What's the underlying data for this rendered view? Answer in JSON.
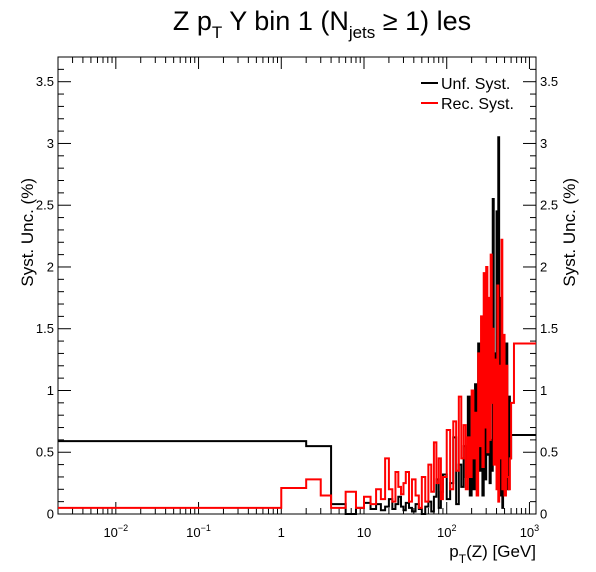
{
  "chart_data": {
    "type": "line",
    "title": {
      "main": "Z p",
      "sub1": "T",
      "mid": " Y bin 1 (N",
      "sub2": "jets",
      "end": " ≥ 1) les"
    },
    "xlabel": {
      "main": "p",
      "sub": "T",
      "end": "(Z) [GeV]"
    },
    "ylabel": "Syst. Unc. (%)",
    "x_scale": "log",
    "xlim": [
      0.002,
      1200
    ],
    "ylim": [
      0,
      3.7
    ],
    "x_ticks": [
      {
        "base": "10",
        "exp": "−2",
        "value": 0.01
      },
      {
        "base": "10",
        "exp": "−1",
        "value": 0.1
      },
      {
        "base": "1",
        "exp": "",
        "value": 1
      },
      {
        "base": "10",
        "exp": "",
        "value": 10
      },
      {
        "base": "10",
        "exp": "2",
        "value": 100
      },
      {
        "base": "10",
        "exp": "3",
        "value": 1000
      }
    ],
    "y_ticks": [
      {
        "label": "0",
        "value": 0
      },
      {
        "label": "0.5",
        "value": 0.5
      },
      {
        "label": "1",
        "value": 1
      },
      {
        "label": "1.5",
        "value": 1.5
      },
      {
        "label": "2",
        "value": 2
      },
      {
        "label": "2.5",
        "value": 2.5
      },
      {
        "label": "3",
        "value": 3
      },
      {
        "label": "3.5",
        "value": 3.5
      }
    ],
    "legend_position": "top-right",
    "series": [
      {
        "name": "Unf. Syst.",
        "color": "#000000",
        "edges": [
          0.002,
          2,
          4,
          6,
          8,
          10,
          12,
          14,
          16,
          18,
          20,
          22,
          24,
          26,
          28,
          30,
          32,
          35,
          38,
          42,
          46,
          50,
          55,
          60,
          65,
          70,
          75,
          80,
          85,
          90,
          100,
          110,
          120,
          130,
          140,
          150,
          160,
          170,
          180,
          190,
          200,
          210,
          220,
          230,
          240,
          250,
          260,
          270,
          280,
          290,
          300,
          310,
          320,
          330,
          340,
          350,
          360,
          370,
          380,
          390,
          400,
          410,
          420,
          430,
          440,
          450,
          460,
          470,
          480,
          500,
          520,
          540,
          560,
          580,
          600,
          650,
          1200
        ],
        "values": [
          0.59,
          0.55,
          0.08,
          0.0,
          0.05,
          0.09,
          0.04,
          0.08,
          0.03,
          0.06,
          0.12,
          0.04,
          0.08,
          0.14,
          0.06,
          0.03,
          0.09,
          0.05,
          0.02,
          0.08,
          0.04,
          0.0,
          0.06,
          0.1,
          0.02,
          0.14,
          0.28,
          0.05,
          0.18,
          0.32,
          0.12,
          0.25,
          0.62,
          0.08,
          0.4,
          0.22,
          0.55,
          0.3,
          0.95,
          0.15,
          0.5,
          0.2,
          1.05,
          0.4,
          1.38,
          0.35,
          0.7,
          0.15,
          1.15,
          0.28,
          0.9,
          0.48,
          1.45,
          0.25,
          0.6,
          0.35,
          2.55,
          0.8,
          1.3,
          0.45,
          2.45,
          0.6,
          3.05,
          0.35,
          1.75,
          0.15,
          1.1,
          0.05,
          0.5,
          0.3,
          1.38,
          0.2,
          0.95,
          0.45,
          0.64,
          0.64
        ]
      },
      {
        "name": "Rec. Syst.",
        "color": "#ff0000",
        "edges": [
          0.002,
          1,
          2,
          3,
          4,
          6,
          8,
          10,
          12,
          14,
          16,
          18,
          20,
          22,
          24,
          26,
          28,
          30,
          32,
          35,
          38,
          42,
          46,
          50,
          55,
          60,
          65,
          70,
          75,
          80,
          85,
          90,
          100,
          110,
          120,
          130,
          140,
          150,
          160,
          170,
          180,
          190,
          200,
          210,
          220,
          230,
          240,
          250,
          260,
          270,
          280,
          290,
          300,
          310,
          320,
          330,
          340,
          350,
          360,
          370,
          380,
          390,
          400,
          410,
          420,
          430,
          440,
          450,
          460,
          470,
          480,
          500,
          520,
          540,
          560,
          580,
          600,
          650,
          800,
          1200
        ],
        "values": [
          0.05,
          0.21,
          0.28,
          0.15,
          0.05,
          0.18,
          0.05,
          0.14,
          0.08,
          0.2,
          0.12,
          0.45,
          0.2,
          0.1,
          0.34,
          0.22,
          0.16,
          0.25,
          0.34,
          0.1,
          0.28,
          0.15,
          0.05,
          0.3,
          0.1,
          0.4,
          0.18,
          0.58,
          0.25,
          0.45,
          0.12,
          0.3,
          0.68,
          0.2,
          0.75,
          0.35,
          0.95,
          0.45,
          0.72,
          0.2,
          0.62,
          0.3,
          1.0,
          0.45,
          0.82,
          0.15,
          1.3,
          0.55,
          1.6,
          0.38,
          1.95,
          0.7,
          2.0,
          0.5,
          1.75,
          0.6,
          2.1,
          0.9,
          1.5,
          0.4,
          0.75,
          1.25,
          0.2,
          1.85,
          0.1,
          0.55,
          1.2,
          0.45,
          2.22,
          0.2,
          1.45,
          0.15,
          1.2,
          0.3,
          0.2,
          0.45,
          0.9,
          1.38,
          1.38
        ]
      }
    ]
  }
}
